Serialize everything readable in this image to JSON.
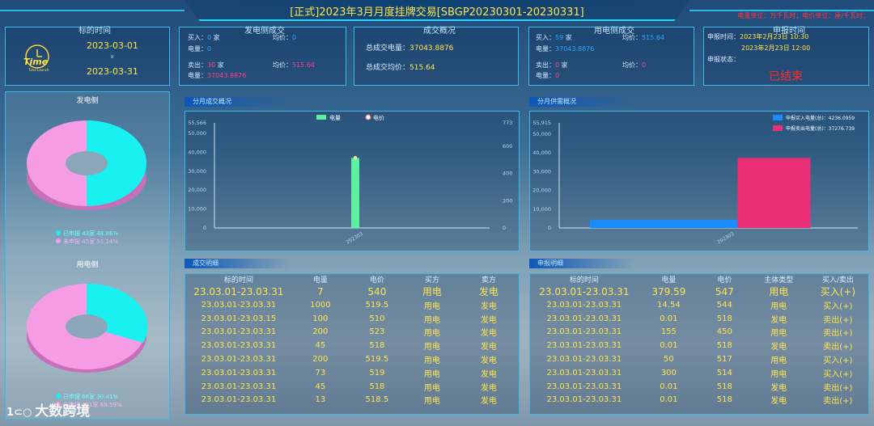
{
  "title": "[正式]2023年3月月度挂牌交易[SBGP20230301-20230331]",
  "unit_note": "电量单位：万千瓦时；电价单位：厘/千瓦时；",
  "colors": {
    "accent": "#2ad4ff",
    "yellow": "#ffe44d",
    "blue": "#2aa7ff",
    "pink": "#ff3f8f",
    "green": "#5ef0a0",
    "cyan": "#19f0f0",
    "magenta": "#f59ce5"
  },
  "time_panel": {
    "title": "标的时间",
    "logo_text": "Time",
    "logo_sub": "Time Launch",
    "start": "2023-03-01",
    "arrow": "»",
    "end": "2023-03-31"
  },
  "gen_side_trade": {
    "title": "发电侧成交",
    "buy_label": "买入：",
    "buy_count": "0",
    "buy_unit": "家",
    "buy_price_label": "均价：",
    "buy_price": "0",
    "buy_qty_label": "电量：",
    "buy_qty": "0",
    "sell_label": "卖出：",
    "sell_count": "30",
    "sell_unit": "家",
    "sell_price_label": "均价：",
    "sell_price": "515.64",
    "sell_qty_label": "电量：",
    "sell_qty": "37043.8876"
  },
  "overview": {
    "title": "成交概况",
    "total_qty_label": "总成交电量：",
    "total_qty": "37043.8876",
    "total_price_label": "总成交均价：",
    "total_price": "515.64"
  },
  "use_side_trade": {
    "title": "用电侧成交",
    "buy_label": "买入：",
    "buy_count": "59",
    "buy_unit": "家",
    "buy_price_label": "均价：",
    "buy_price": "515.64",
    "buy_qty_label": "电量：",
    "buy_qty": "37043.8876",
    "sell_label": "卖出：",
    "sell_count": "0",
    "sell_unit": "家",
    "sell_price_label": "均价：",
    "sell_price": "0",
    "sell_qty_label": "电量：",
    "sell_qty": "0"
  },
  "declare_time": {
    "title": "申报时间",
    "start_label": "申报时间：",
    "start": "2023年2月23日 10:30",
    "end": "2023年2月23日 12:00",
    "status_label": "申报状态：",
    "status": "已结束"
  },
  "gen_pie": {
    "title": "发电侧",
    "legend": [
      {
        "label": "已申报 43家 48.86%",
        "color": "#19f0f0"
      },
      {
        "label": "未申报 45家 51.14%",
        "color": "#f59ce5"
      }
    ]
  },
  "use_pie": {
    "title": "用电侧",
    "legend": [
      {
        "label": "已申报 66家 30.41%",
        "color": "#19f0f0"
      },
      {
        "label": "未申报 151家 69.59%",
        "color": "#f59ce5"
      }
    ]
  },
  "monthly_trade_tag": "分月成交概况",
  "supply_tag": "分月供需概况",
  "detail_tag": "成交明细",
  "declare_tag": "申报明细",
  "chart_data": [
    {
      "type": "bar",
      "title": "",
      "series": [
        {
          "name": "电量",
          "type": "bar",
          "values": [
            37043.8876
          ]
        },
        {
          "name": "电价",
          "type": "line",
          "values": [
            515.64
          ]
        }
      ],
      "categories": [
        "202303"
      ],
      "y_left_ticks": [
        "55,566",
        "50,000",
        "40,000",
        "30,000",
        "20,000",
        "10,000",
        "0"
      ],
      "y_left_max": 55566,
      "y_right_ticks": [
        "773",
        "600",
        "400",
        "200",
        "0"
      ],
      "y_right_max": 773,
      "legend": "top-center"
    },
    {
      "type": "bar",
      "title": "",
      "series": [
        {
          "name": "申报买入电量(总)：4236.0959",
          "values": [
            4236.0959
          ]
        },
        {
          "name": "申报卖出电量(总)：37276.739",
          "values": [
            37276.739
          ]
        }
      ],
      "categories": [
        "202303"
      ],
      "y_ticks": [
        "55,915",
        "50,000",
        "40,000",
        "30,000",
        "20,000",
        "10,000",
        "0"
      ],
      "y_max": 55915,
      "legend": "top-right"
    }
  ],
  "trade_detail": {
    "headers": [
      "标的时间",
      "电量",
      "电价",
      "买方",
      "卖方"
    ],
    "summary": [
      "23.03.01-23.03.31",
      "7",
      "540",
      "用电",
      "发电"
    ],
    "rows": [
      [
        "23.03.01-23.03.31",
        "1000",
        "519.5",
        "用电",
        "发电"
      ],
      [
        "23.03.01-23.03.15",
        "100",
        "510",
        "用电",
        "发电"
      ],
      [
        "23.03.01-23.03.31",
        "200",
        "523",
        "用电",
        "发电"
      ],
      [
        "23.03.01-23.03.31",
        "45",
        "518",
        "用电",
        "发电"
      ],
      [
        "23.03.01-23.03.31",
        "200",
        "519.5",
        "用电",
        "发电"
      ],
      [
        "23.03.01-23.03.31",
        "73",
        "519",
        "用电",
        "发电"
      ],
      [
        "23.03.01-23.03.31",
        "45",
        "518",
        "用电",
        "发电"
      ],
      [
        "23.03.01-23.03.31",
        "13",
        "518.5",
        "用电",
        "发电"
      ]
    ]
  },
  "declare_detail": {
    "headers": [
      "标的时间",
      "电量",
      "电价",
      "主体类型",
      "买入/卖出"
    ],
    "summary": [
      "23.03.01-23.03.31",
      "379.59",
      "547",
      "用电",
      "买入(+)"
    ],
    "rows": [
      [
        "23.03.01-23.03.31",
        "14.54",
        "544",
        "用电",
        "买入(+)"
      ],
      [
        "23.03.01-23.03.31",
        "0.01",
        "518",
        "发电",
        "卖出(+)"
      ],
      [
        "23.03.01-23.03.31",
        "155",
        "450",
        "用电",
        "卖出(+)"
      ],
      [
        "23.03.01-23.03.31",
        "0.01",
        "518",
        "发电",
        "卖出(+)"
      ],
      [
        "23.03.01-23.03.31",
        "50",
        "517",
        "用电",
        "买入(+)"
      ],
      [
        "23.03.01-23.03.31",
        "300",
        "514",
        "用电",
        "买入(+)"
      ],
      [
        "23.03.01-23.03.31",
        "0.01",
        "518",
        "发电",
        "卖出(+)"
      ],
      [
        "23.03.01-23.03.31",
        "0.01",
        "518",
        "发电",
        "卖出(+)"
      ]
    ]
  },
  "watermark": "大数跨境"
}
